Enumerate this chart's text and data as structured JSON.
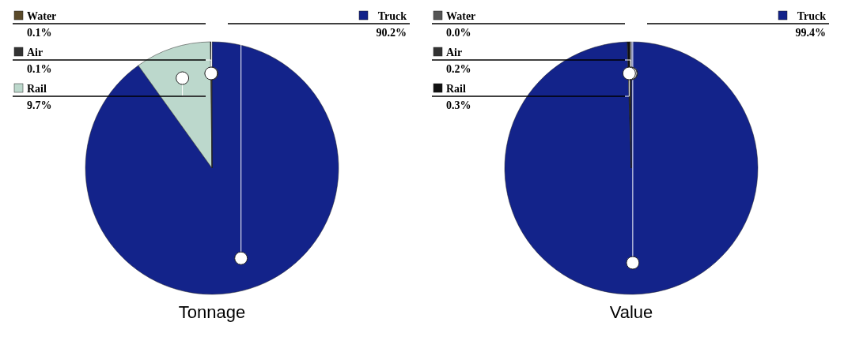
{
  "chart_data": [
    {
      "type": "pie",
      "title": "Tonnage",
      "categories": [
        "Truck",
        "Rail",
        "Air",
        "Water"
      ],
      "values": [
        90.2,
        9.7,
        0.1,
        0.1
      ],
      "value_labels": [
        "90.2%",
        "9.7%",
        "0.1%",
        "0.1%"
      ],
      "colors": [
        "#13238a",
        "#bcd8cc",
        "#333333",
        "#5a4a2a"
      ],
      "legend": "top"
    },
    {
      "type": "pie",
      "title": "Value",
      "categories": [
        "Truck",
        "Rail",
        "Air",
        "Water"
      ],
      "values": [
        99.4,
        0.3,
        0.2,
        0.0
      ],
      "value_labels": [
        "99.4%",
        "0.3%",
        "0.2%",
        "0.0%"
      ],
      "colors": [
        "#13238a",
        "#111111",
        "#333333",
        "#555555"
      ],
      "legend": "top"
    }
  ]
}
